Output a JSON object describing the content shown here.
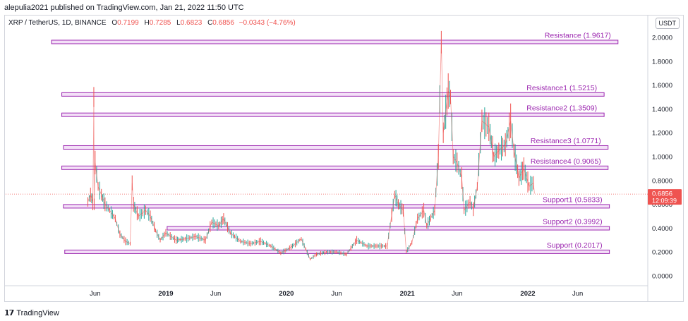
{
  "header": {
    "publisher": "alepulia2021 published on TradingView.com, Jan 21, 2022 11:50 UTC"
  },
  "legend": {
    "symbol": "XRP / TetherUS, 1D, BINANCE",
    "open_label": "O",
    "open": "0.7199",
    "high_label": "H",
    "high": "0.7285",
    "low_label": "L",
    "low": "0.6823",
    "close_label": "C",
    "close": "0.6856",
    "change": "−0.0343 (−4.76%)"
  },
  "currency": "USDT",
  "price_tag": {
    "price": "0.6856",
    "countdown": "12:09:39"
  },
  "footer": {
    "brand": "TradingView"
  },
  "colors": {
    "level": "#9c27b0",
    "level_fill": "#f3e0f7",
    "up": "#26a69a",
    "down": "#ef5350",
    "text_level": "#9c27b0"
  },
  "chart_data": {
    "type": "line",
    "y_ticks": [
      "2.0000",
      "1.8000",
      "1.6000",
      "1.4000",
      "1.2000",
      "1.0000",
      "0.8000",
      "0.6000",
      "0.4000",
      "0.2000",
      "0.0000"
    ],
    "y_range": [
      -0.12,
      2.13
    ],
    "x_ticks": [
      {
        "label": "Jun",
        "date": "2018-06-01"
      },
      {
        "label": "2019",
        "date": "2019-01-01"
      },
      {
        "label": "Jun",
        "date": "2019-06-01"
      },
      {
        "label": "2020",
        "date": "2020-01-01"
      },
      {
        "label": "Jun",
        "date": "2020-06-01"
      },
      {
        "label": "2021",
        "date": "2021-01-01"
      },
      {
        "label": "Jun",
        "date": "2021-06-01"
      },
      {
        "label": "2022",
        "date": "2022-01-01"
      },
      {
        "label": "Jun",
        "date": "2022-06-01"
      }
    ],
    "levels": [
      {
        "name": "Resistance (1.9617)",
        "value": 1.9617
      },
      {
        "name": "Resistance1 (1.5215)",
        "value": 1.5215
      },
      {
        "name": "Resistance2 (1.3509)",
        "value": 1.3509
      },
      {
        "name": "Resistance3 (1.0771)",
        "value": 1.0771
      },
      {
        "name": "Resistance4 (0.9065)",
        "value": 0.9065
      },
      {
        "name": "Support1 (0.5833)",
        "value": 0.5833
      },
      {
        "name": "Support2 (0.3992)",
        "value": 0.3992
      },
      {
        "name": "Support (0.2017)",
        "value": 0.2017
      }
    ],
    "price_series": [
      [
        "2018-05-10",
        0.62
      ],
      [
        "2018-05-18",
        0.68
      ],
      [
        "2018-05-25",
        0.62
      ],
      [
        "2018-05-28",
        1.5
      ],
      [
        "2018-05-29",
        0.6
      ],
      [
        "2018-06-01",
        0.95
      ],
      [
        "2018-06-10",
        0.75
      ],
      [
        "2018-06-20",
        0.68
      ],
      [
        "2018-07-01",
        0.6
      ],
      [
        "2018-07-15",
        0.55
      ],
      [
        "2018-08-01",
        0.48
      ],
      [
        "2018-08-15",
        0.35
      ],
      [
        "2018-09-01",
        0.29
      ],
      [
        "2018-09-15",
        0.27
      ],
      [
        "2018-09-21",
        0.78
      ],
      [
        "2018-09-25",
        0.6
      ],
      [
        "2018-10-10",
        0.5
      ],
      [
        "2018-11-01",
        0.55
      ],
      [
        "2018-11-15",
        0.5
      ],
      [
        "2018-12-01",
        0.38
      ],
      [
        "2018-12-15",
        0.3
      ],
      [
        "2019-01-01",
        0.36
      ],
      [
        "2019-02-01",
        0.3
      ],
      [
        "2019-03-01",
        0.31
      ],
      [
        "2019-04-01",
        0.33
      ],
      [
        "2019-05-01",
        0.3
      ],
      [
        "2019-05-20",
        0.45
      ],
      [
        "2019-06-10",
        0.42
      ],
      [
        "2019-06-25",
        0.48
      ],
      [
        "2019-07-15",
        0.36
      ],
      [
        "2019-08-15",
        0.29
      ],
      [
        "2019-09-15",
        0.27
      ],
      [
        "2019-10-15",
        0.29
      ],
      [
        "2019-11-15",
        0.25
      ],
      [
        "2019-12-15",
        0.19
      ],
      [
        "2020-01-15",
        0.24
      ],
      [
        "2020-02-15",
        0.31
      ],
      [
        "2020-03-13",
        0.14
      ],
      [
        "2020-04-01",
        0.18
      ],
      [
        "2020-05-01",
        0.2
      ],
      [
        "2020-06-01",
        0.2
      ],
      [
        "2020-07-01",
        0.18
      ],
      [
        "2020-08-01",
        0.3
      ],
      [
        "2020-09-01",
        0.25
      ],
      [
        "2020-10-01",
        0.25
      ],
      [
        "2020-11-01",
        0.25
      ],
      [
        "2020-11-24",
        0.68
      ],
      [
        "2020-12-05",
        0.6
      ],
      [
        "2020-12-20",
        0.55
      ],
      [
        "2020-12-29",
        0.2
      ],
      [
        "2021-01-15",
        0.28
      ],
      [
        "2021-02-01",
        0.48
      ],
      [
        "2021-02-20",
        0.55
      ],
      [
        "2021-03-01",
        0.42
      ],
      [
        "2021-03-25",
        0.55
      ],
      [
        "2021-04-05",
        1.0
      ],
      [
        "2021-04-14",
        1.96
      ],
      [
        "2021-04-20",
        1.2
      ],
      [
        "2021-05-05",
        1.55
      ],
      [
        "2021-05-12",
        1.5
      ],
      [
        "2021-05-20",
        1.0
      ],
      [
        "2021-06-01",
        0.95
      ],
      [
        "2021-06-15",
        0.82
      ],
      [
        "2021-06-22",
        0.55
      ],
      [
        "2021-07-10",
        0.62
      ],
      [
        "2021-07-20",
        0.56
      ],
      [
        "2021-08-01",
        0.75
      ],
      [
        "2021-08-15",
        1.3
      ],
      [
        "2021-09-05",
        1.25
      ],
      [
        "2021-09-20",
        1.0
      ],
      [
        "2021-10-05",
        1.05
      ],
      [
        "2021-10-25",
        1.1
      ],
      [
        "2021-11-10",
        1.3
      ],
      [
        "2021-11-20",
        1.05
      ],
      [
        "2021-12-05",
        0.82
      ],
      [
        "2021-12-20",
        0.9
      ],
      [
        "2022-01-05",
        0.75
      ],
      [
        "2022-01-18",
        0.78
      ],
      [
        "2022-01-21",
        0.69
      ]
    ]
  }
}
